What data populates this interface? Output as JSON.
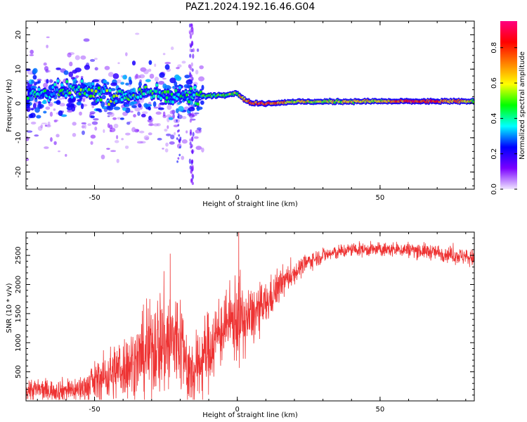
{
  "figure": {
    "title": "PAZ1.2024.192.16.46.G04"
  },
  "chart_data": [
    {
      "type": "heatmap",
      "xlabel": "Height of straight line (km)",
      "ylabel": "Frequency (Hz)",
      "xlim": [
        -74,
        83
      ],
      "ylim": [
        -25,
        24
      ],
      "xticks": [
        -50,
        0,
        50
      ],
      "yticks": [
        -20,
        -10,
        0,
        10,
        20
      ],
      "colorbar": {
        "label": "Normalized spectral amplitude",
        "range": [
          0.0,
          0.95
        ],
        "ticks": [
          0.0,
          0.2,
          0.4,
          0.6,
          0.8
        ],
        "colormap": [
          "#f0e6ff",
          "#7a00ff",
          "#0000ff",
          "#00ffff",
          "#00ff00",
          "#ffff00",
          "#ff8000",
          "#ff0000",
          "#ff0080"
        ]
      },
      "ridge": {
        "x": [
          -74,
          -60,
          -50,
          -40,
          -30,
          -20,
          -15,
          -5,
          0,
          2,
          5,
          10,
          20,
          30,
          40,
          50,
          60,
          70,
          83
        ],
        "freq": [
          2.5,
          3.5,
          3.2,
          2.0,
          3.0,
          2.5,
          2.0,
          2.5,
          3.0,
          1.5,
          0.0,
          0.0,
          0.5,
          0.5,
          0.6,
          0.6,
          0.6,
          0.6,
          0.6
        ],
        "amplitude": [
          0.35,
          0.4,
          0.45,
          0.45,
          0.4,
          0.35,
          0.4,
          0.5,
          0.55,
          0.65,
          0.75,
          0.8,
          0.6,
          0.55,
          0.6,
          0.6,
          0.8,
          0.75,
          0.6
        ]
      }
    },
    {
      "type": "line",
      "xlabel": "Height of straight line (km)",
      "ylabel": "SNR (10 * v/v)",
      "xlim": [
        -74,
        83
      ],
      "ylim": [
        0,
        2900
      ],
      "xticks": [
        -50,
        0,
        50
      ],
      "yticks": [
        500,
        1000,
        1500,
        2000,
        2500
      ],
      "color": "#ee3333",
      "envelope": {
        "x": [
          -74,
          -65,
          -55,
          -45,
          -35,
          -28,
          -24,
          -20,
          -16,
          -10,
          -5,
          -2,
          0,
          2,
          5,
          10,
          15,
          20,
          25,
          30,
          40,
          50,
          60,
          70,
          83
        ],
        "mean": [
          200,
          180,
          200,
          450,
          700,
          1000,
          1000,
          1050,
          400,
          900,
          1250,
          1350,
          1450,
          1350,
          1450,
          1650,
          2000,
          2200,
          2400,
          2500,
          2600,
          2600,
          2600,
          2550,
          2450
        ],
        "noise": [
          150,
          120,
          150,
          300,
          420,
          600,
          700,
          600,
          400,
          450,
          400,
          350,
          600,
          400,
          350,
          250,
          200,
          120,
          100,
          90,
          80,
          80,
          90,
          90,
          100
        ]
      },
      "peaks": [
        {
          "x": -23.5,
          "y": 2530
        },
        {
          "x": 0.5,
          "y": 2900
        },
        {
          "x": -16.5,
          "y": 60
        }
      ]
    }
  ]
}
